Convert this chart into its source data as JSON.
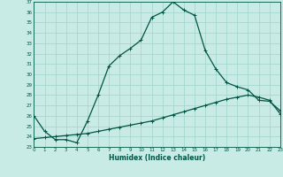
{
  "xlabel": "Humidex (Indice chaleur)",
  "bg_color": "#c8ebe5",
  "grid_color": "#9dd4ca",
  "line_color": "#005544",
  "xmin": 0,
  "xmax": 23,
  "ymin": 23,
  "ymax": 37,
  "yticks": [
    23,
    24,
    25,
    26,
    27,
    28,
    29,
    30,
    31,
    32,
    33,
    34,
    35,
    36,
    37
  ],
  "xticks": [
    0,
    1,
    2,
    3,
    4,
    5,
    6,
    7,
    8,
    9,
    10,
    11,
    12,
    13,
    14,
    15,
    16,
    17,
    18,
    19,
    20,
    21,
    22,
    23
  ],
  "curve1_x": [
    0,
    1,
    2,
    3,
    4,
    5,
    6,
    7,
    8,
    9,
    10,
    11,
    12,
    13,
    14,
    15,
    16,
    17,
    18,
    19,
    20,
    21,
    22,
    23
  ],
  "curve1_y": [
    26.0,
    24.5,
    23.7,
    23.7,
    23.4,
    25.5,
    28.0,
    30.8,
    31.8,
    32.5,
    33.3,
    35.5,
    36.0,
    37.0,
    36.2,
    35.7,
    32.3,
    30.5,
    29.2,
    28.8,
    28.5,
    27.5,
    27.4,
    26.5
  ],
  "curve2_x": [
    0,
    1,
    2,
    3,
    4,
    5,
    6,
    7,
    8,
    9,
    10,
    11,
    12,
    13,
    14,
    15,
    16,
    17,
    18,
    19,
    20,
    21,
    22,
    23
  ],
  "curve2_y": [
    23.8,
    23.9,
    24.0,
    24.1,
    24.2,
    24.3,
    24.5,
    24.7,
    24.9,
    25.1,
    25.3,
    25.5,
    25.8,
    26.1,
    26.4,
    26.7,
    27.0,
    27.3,
    27.6,
    27.8,
    28.0,
    27.8,
    27.5,
    26.2
  ],
  "linewidth": 0.9,
  "marker_size": 2.0
}
